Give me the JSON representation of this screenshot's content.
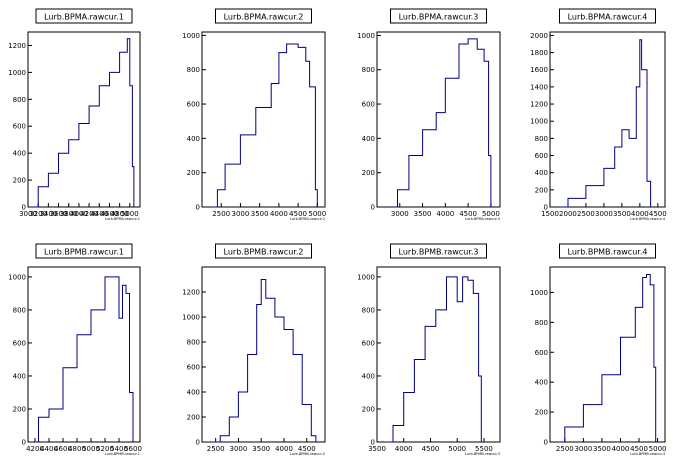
{
  "colors": {
    "line": "#000080",
    "axis": "#000000",
    "background": "#ffffff"
  },
  "chart_data": [
    {
      "type": "histogram",
      "title": "Lurb.BPMA.rawcur.1",
      "xlabel": "Lurb.BPMA.rawcur.1",
      "xlim": [
        3000,
        5200
      ],
      "ylim": [
        0,
        1300
      ],
      "xticks": [
        "3000",
        "3200",
        "3400",
        "3600",
        "3800",
        "4000",
        "4200",
        "4400",
        "4600",
        "4800",
        "5000"
      ],
      "yticks": [
        "0",
        "200",
        "400",
        "600",
        "800",
        "1000",
        "1200"
      ],
      "x": [
        3050,
        3200,
        3400,
        3600,
        3800,
        4000,
        4200,
        4400,
        4600,
        4800,
        4950,
        5000,
        5050,
        5080
      ],
      "y": [
        0,
        150,
        250,
        400,
        500,
        620,
        750,
        900,
        1000,
        1150,
        1250,
        900,
        300,
        0
      ]
    },
    {
      "type": "histogram",
      "title": "Lurb.BPMA.rawcur.2",
      "xlabel": "Lurb.BPMA.rawcur.2",
      "xlim": [
        2000,
        5200
      ],
      "ylim": [
        0,
        1020
      ],
      "xticks": [
        "2500",
        "3000",
        "3500",
        "4000",
        "4500",
        "5000"
      ],
      "yticks": [
        "0",
        "200",
        "400",
        "600",
        "800",
        "1000"
      ],
      "x": [
        2250,
        2400,
        2600,
        3000,
        3400,
        3800,
        4000,
        4200,
        4500,
        4700,
        4800,
        4950,
        5000
      ],
      "y": [
        0,
        100,
        250,
        420,
        580,
        720,
        900,
        950,
        930,
        850,
        700,
        100,
        0
      ]
    },
    {
      "type": "histogram",
      "title": "Lurb.BPMA.rawcur.3",
      "xlabel": "Lurb.BPMA.rawcur.3",
      "xlim": [
        2500,
        5200
      ],
      "ylim": [
        0,
        1020
      ],
      "xticks": [
        "3000",
        "3500",
        "4000",
        "4500",
        "5000"
      ],
      "yticks": [
        "0",
        "200",
        "400",
        "600",
        "800",
        "1000"
      ],
      "x": [
        2800,
        2950,
        3200,
        3500,
        3800,
        4000,
        4300,
        4500,
        4700,
        4850,
        4950,
        5000
      ],
      "y": [
        0,
        100,
        300,
        450,
        550,
        750,
        950,
        980,
        920,
        850,
        300,
        0
      ]
    },
    {
      "type": "histogram",
      "title": "Lurb.BPMA.rawcur.4",
      "xlabel": "Lurb.BPMA.rawcur.4",
      "xlim": [
        1500,
        4700
      ],
      "ylim": [
        0,
        2040
      ],
      "xticks": [
        "1500",
        "2000",
        "2500",
        "3000",
        "3500",
        "4000",
        "4500"
      ],
      "yticks": [
        "0",
        "200",
        "400",
        "600",
        "800",
        "1000",
        "1200",
        "1400",
        "1600",
        "1800",
        "2000"
      ],
      "x": [
        1750,
        2000,
        2500,
        3000,
        3300,
        3500,
        3700,
        3900,
        4000,
        4050,
        4200,
        4300
      ],
      "y": [
        0,
        100,
        250,
        450,
        700,
        900,
        800,
        1400,
        1950,
        1600,
        300,
        0
      ]
    },
    {
      "type": "histogram",
      "title": "Lurb.BPMB.rawcur.1",
      "xlabel": "Lurb.BPMB.rawcur.1",
      "xlim": [
        4100,
        5700
      ],
      "ylim": [
        0,
        1060
      ],
      "xticks": [
        "4200",
        "4400",
        "4600",
        "4800",
        "5000",
        "5200",
        "5400",
        "5600"
      ],
      "yticks": [
        "0",
        "200",
        "400",
        "600",
        "800",
        "1000"
      ],
      "x": [
        4200,
        4250,
        4400,
        4600,
        4800,
        5000,
        5200,
        5300,
        5400,
        5450,
        5500,
        5550,
        5600
      ],
      "y": [
        0,
        150,
        200,
        450,
        650,
        800,
        1000,
        1000,
        750,
        950,
        900,
        300,
        0
      ]
    },
    {
      "type": "histogram",
      "title": "Lurb.BPMB.rawcur.2",
      "xlabel": "Lurb.BPMB.rawcur.2",
      "xlim": [
        2200,
        4900
      ],
      "ylim": [
        0,
        1400
      ],
      "xticks": [
        "2500",
        "3000",
        "3500",
        "4000",
        "4500"
      ],
      "yticks": [
        "0",
        "200",
        "400",
        "600",
        "800",
        "1000",
        "1200"
      ],
      "x": [
        2400,
        2600,
        2800,
        3000,
        3200,
        3400,
        3500,
        3600,
        3800,
        4000,
        4200,
        4400,
        4600,
        4700
      ],
      "y": [
        0,
        50,
        200,
        400,
        700,
        1100,
        1300,
        1150,
        1000,
        900,
        700,
        300,
        50,
        0
      ]
    },
    {
      "type": "histogram",
      "title": "Lurb.BPMB.rawcur.3",
      "xlabel": "Lurb.BPMB.rawcur.3",
      "xlim": [
        3500,
        5800
      ],
      "ylim": [
        0,
        1060
      ],
      "xticks": [
        "3500",
        "4000",
        "4500",
        "5000",
        "5500"
      ],
      "yticks": [
        "0",
        "200",
        "400",
        "600",
        "800",
        "1000"
      ],
      "x": [
        3650,
        3800,
        4000,
        4200,
        4400,
        4600,
        4800,
        5000,
        5100,
        5200,
        5300,
        5400,
        5450
      ],
      "y": [
        0,
        100,
        300,
        500,
        700,
        800,
        1000,
        850,
        1000,
        980,
        900,
        400,
        0
      ]
    },
    {
      "type": "histogram",
      "title": "Lurb.BPMB.rawcur.4",
      "xlabel": "Lurb.BPMB.rawcur.4",
      "xlim": [
        2100,
        5200
      ],
      "ylim": [
        0,
        1170
      ],
      "xticks": [
        "2500",
        "3000",
        "3500",
        "4000",
        "4500",
        "5000"
      ],
      "yticks": [
        "0",
        "200",
        "400",
        "600",
        "800",
        "1000"
      ],
      "x": [
        2300,
        2500,
        3000,
        3500,
        4000,
        4400,
        4600,
        4700,
        4800,
        4900,
        4950
      ],
      "y": [
        0,
        100,
        250,
        450,
        700,
        900,
        1100,
        1120,
        1050,
        500,
        0
      ]
    }
  ]
}
